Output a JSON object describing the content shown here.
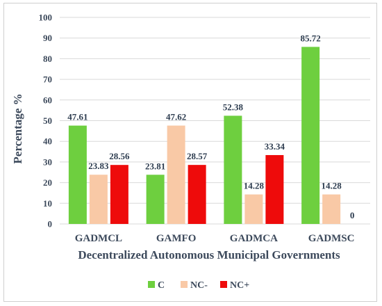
{
  "chart_data": {
    "type": "bar",
    "title": "",
    "xlabel": "Decentralized Autonomous Municipal Governments",
    "ylabel": "Percentage %",
    "ylim": [
      0,
      100
    ],
    "yticks": [
      0,
      10,
      20,
      30,
      40,
      50,
      60,
      70,
      80,
      90,
      100
    ],
    "grid": true,
    "legend_position": "bottom",
    "categories": [
      "GADMCL",
      "GAMFO",
      "GADMCA",
      "GADMSC"
    ],
    "series": [
      {
        "name": "C",
        "color": "#6ecf3f",
        "values": [
          47.61,
          23.81,
          52.38,
          85.72
        ],
        "labels": [
          "47.61",
          "23.81",
          "52.38",
          "85.72"
        ]
      },
      {
        "name": "NC-",
        "color": "#f9c9a6",
        "values": [
          23.83,
          47.62,
          14.28,
          14.28
        ],
        "labels": [
          "23.83",
          "47.62",
          "14.28",
          "14.28"
        ]
      },
      {
        "name": "NC+",
        "color": "#ee0b0b",
        "values": [
          28.56,
          28.57,
          33.34,
          0
        ],
        "labels": [
          "28.56",
          "28.57",
          "33.34",
          "0"
        ]
      }
    ]
  }
}
